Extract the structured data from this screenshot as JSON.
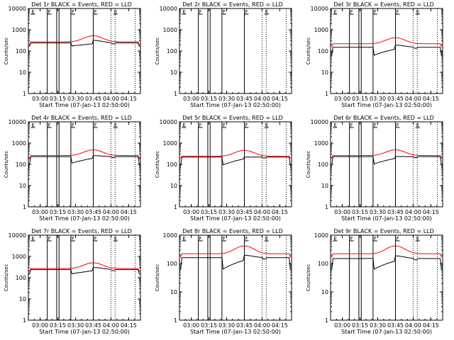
{
  "figure": {
    "x_ticks": [
      "03:00",
      "03:15",
      "03:30",
      "03:45",
      "04:00",
      "04:15"
    ],
    "y_ticks": [
      "1",
      "10",
      "100",
      "1000",
      "10000"
    ],
    "ylabel": "Counts/sec",
    "xlabel": "Start Time (07-Jan-13 02:50:00)",
    "colors": {
      "events": "#000000",
      "lld": "#ff0000"
    },
    "flag_labels": [
      "E",
      "F",
      "F",
      "F",
      "E"
    ]
  },
  "chart_data": [
    {
      "type": "line",
      "title": "Det 1r BLACK = Events, RED = LLD",
      "ylim": [
        1,
        10000
      ],
      "yscale": "log",
      "series": [
        {
          "name": "Events",
          "level": 240,
          "min": 170,
          "max": 460
        },
        {
          "name": "LLD",
          "level": 270,
          "min": 200,
          "max": 520
        }
      ]
    },
    {
      "type": "line",
      "title": "Det 2r BLACK = Events, RED = LLD",
      "ylim": [
        1,
        10000
      ],
      "yscale": "log",
      "series": []
    },
    {
      "type": "line",
      "title": "Det 3r BLACK = Events, RED = LLD",
      "ylim": [
        1,
        10000
      ],
      "yscale": "log",
      "series": [
        {
          "name": "Events",
          "level": 150,
          "min": 60,
          "max": 260
        },
        {
          "name": "LLD",
          "level": 220,
          "min": 160,
          "max": 420
        }
      ]
    },
    {
      "type": "line",
      "title": "Det 4r BLACK = Events, RED = LLD",
      "ylim": [
        1,
        10000
      ],
      "yscale": "log",
      "series": [
        {
          "name": "Events",
          "level": 230,
          "min": 110,
          "max": 310
        },
        {
          "name": "LLD",
          "level": 260,
          "min": 180,
          "max": 480
        }
      ]
    },
    {
      "type": "line",
      "title": "Det 5r BLACK = Events, RED = LLD",
      "ylim": [
        1,
        10000
      ],
      "yscale": "log",
      "series": [
        {
          "name": "Events",
          "level": 220,
          "min": 90,
          "max": 220
        },
        {
          "name": "LLD",
          "level": 240,
          "min": 200,
          "max": 460
        }
      ]
    },
    {
      "type": "line",
      "title": "Det 6r BLACK = Events, RED = LLD",
      "ylim": [
        1,
        10000
      ],
      "yscale": "log",
      "series": [
        {
          "name": "Events",
          "level": 230,
          "min": 100,
          "max": 240
        },
        {
          "name": "LLD",
          "level": 260,
          "min": 210,
          "max": 480
        }
      ]
    },
    {
      "type": "line",
      "title": "Det 7r BLACK = Events, RED = LLD",
      "ylim": [
        1,
        10000
      ],
      "yscale": "log",
      "series": [
        {
          "name": "Events",
          "level": 240,
          "min": 150,
          "max": 420
        },
        {
          "name": "LLD",
          "level": 270,
          "min": 200,
          "max": 500
        }
      ]
    },
    {
      "type": "line",
      "title": "Det 8r BLACK = Events, RED = LLD",
      "ylim": [
        1,
        1000
      ],
      "yscale": "log",
      "series": [
        {
          "name": "Events",
          "level": 160,
          "min": 60,
          "max": 260
        },
        {
          "name": "LLD",
          "level": 220,
          "min": 170,
          "max": 420
        }
      ]
    },
    {
      "type": "line",
      "title": "Det 9r BLACK = Events, RED = LLD",
      "ylim": [
        1,
        1000
      ],
      "yscale": "log",
      "series": [
        {
          "name": "Events",
          "level": 150,
          "min": 60,
          "max": 250
        },
        {
          "name": "LLD",
          "level": 220,
          "min": 170,
          "max": 420
        }
      ]
    }
  ]
}
